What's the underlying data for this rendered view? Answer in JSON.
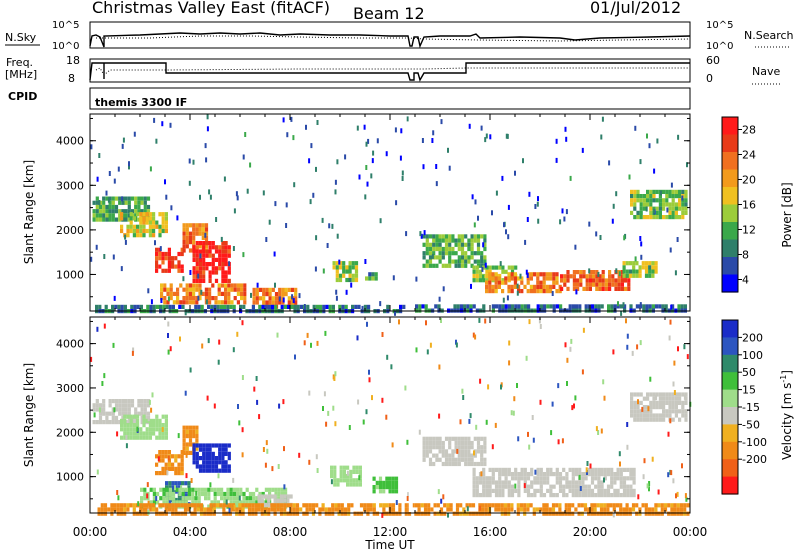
{
  "header": {
    "title": "Christmas Valley East (fitACF)",
    "beam": "Beam 12",
    "date": "01/Jul/2012"
  },
  "top_panels": {
    "nsky_label": "N.Sky",
    "nsky_left_ticks": [
      "10^5",
      "10^0"
    ],
    "nsky_right_ticks": [
      "10^5",
      "10^0"
    ],
    "nsearch_label": "N.Search",
    "freq_label": "Freq.",
    "freq_unit": "[MHz]",
    "freq_ticks": [
      "18",
      "8"
    ],
    "nave_label": "Nave",
    "nave_ticks": [
      "60",
      "0"
    ],
    "cpid_label": "CPID",
    "cpid_value": "themis 3300 IF"
  },
  "chart_data": [
    {
      "type": "heatmap",
      "panel": "power",
      "ylabel": "Slant Range [km]",
      "ylim": [
        180,
        4600
      ],
      "yticks": [
        "1000",
        "2000",
        "3000",
        "4000"
      ],
      "xlabel": "Time UT",
      "xlim_hours": [
        0,
        24
      ],
      "xticks": [
        "00:00",
        "04:00",
        "08:00",
        "12:00",
        "16:00",
        "20:00",
        "00:00"
      ],
      "colorbar": {
        "label": "Power [dB]",
        "ticks": [
          "4",
          "8",
          "12",
          "16",
          "20",
          "24",
          "28"
        ],
        "colors": [
          "#0000ff",
          "#2a4aa8",
          "#2f7f6a",
          "#3aa84a",
          "#9ccc3a",
          "#f0c020",
          "#f29a1c",
          "#f07020",
          "#e83a18",
          "#ff1a1a"
        ]
      },
      "regions": [
        {
          "t": [
            0.1,
            2.4
          ],
          "r": [
            2250,
            2750
          ],
          "v": 12
        },
        {
          "t": [
            1.2,
            3.0
          ],
          "r": [
            1900,
            2400
          ],
          "v": 16
        },
        {
          "t": [
            2.6,
            3.7
          ],
          "r": [
            1050,
            1600
          ],
          "v": 26
        },
        {
          "t": [
            3.7,
            4.6
          ],
          "r": [
            1500,
            2150
          ],
          "v": 22
        },
        {
          "t": [
            4.1,
            5.6
          ],
          "r": [
            850,
            1750
          ],
          "v": 28
        },
        {
          "t": [
            2.8,
            6.2
          ],
          "r": [
            350,
            800
          ],
          "v": 22
        },
        {
          "t": [
            6.5,
            8.2
          ],
          "r": [
            250,
            700
          ],
          "v": 22
        },
        {
          "t": [
            0.2,
            12.5
          ],
          "r": [
            190,
            320
          ],
          "v": 8
        },
        {
          "t": [
            9.7,
            10.7
          ],
          "r": [
            900,
            1300
          ],
          "v": 14
        },
        {
          "t": [
            11.0,
            11.5
          ],
          "r": [
            900,
            1050
          ],
          "v": 10
        },
        {
          "t": [
            13.3,
            15.8
          ],
          "r": [
            1200,
            1900
          ],
          "v": 12
        },
        {
          "t": [
            15.3,
            17.0
          ],
          "r": [
            900,
            1200
          ],
          "v": 14
        },
        {
          "t": [
            15.8,
            18.8
          ],
          "r": [
            650,
            1050
          ],
          "v": 22
        },
        {
          "t": [
            18.8,
            21.5
          ],
          "r": [
            650,
            1100
          ],
          "v": 24
        },
        {
          "t": [
            21.3,
            22.6
          ],
          "r": [
            1000,
            1300
          ],
          "v": 14
        },
        {
          "t": [
            21.6,
            23.9
          ],
          "r": [
            2300,
            2900
          ],
          "v": 14
        },
        {
          "t": [
            13.0,
            23.9
          ],
          "r": [
            190,
            330
          ],
          "v": 8
        }
      ]
    },
    {
      "type": "heatmap",
      "panel": "velocity",
      "ylabel": "Slant Range [km]",
      "ylim": [
        180,
        4600
      ],
      "yticks": [
        "1000",
        "2000",
        "3000",
        "4000"
      ],
      "xlabel": "Time UT",
      "xlim_hours": [
        0,
        24
      ],
      "xticks": [
        "00:00",
        "04:00",
        "08:00",
        "12:00",
        "16:00",
        "20:00",
        "00:00"
      ],
      "colorbar": {
        "label": "Velocity [m s^-1]",
        "ticks": [
          "200",
          "100",
          "50",
          "15",
          "-15",
          "-50",
          "-100",
          "-200"
        ],
        "colors": [
          "#1a2cc8",
          "#2c55c0",
          "#2f8a6a",
          "#3fbf3a",
          "#9fdd8a",
          "#c8c8c0",
          "#f0b020",
          "#f08a18",
          "#f06018",
          "#ff1a1a"
        ]
      },
      "regions": [
        {
          "t": [
            0.1,
            2.4
          ],
          "r": [
            2250,
            2750
          ],
          "v": 0
        },
        {
          "t": [
            1.2,
            3.0
          ],
          "r": [
            1900,
            2400
          ],
          "v": 30
        },
        {
          "t": [
            2.6,
            3.7
          ],
          "r": [
            1050,
            1600
          ],
          "v": -60
        },
        {
          "t": [
            3.7,
            4.3
          ],
          "r": [
            1500,
            2150
          ],
          "v": -60
        },
        {
          "t": [
            4.1,
            5.6
          ],
          "r": [
            1150,
            1750
          ],
          "v": 220
        },
        {
          "t": [
            3.0,
            4.0
          ],
          "r": [
            400,
            900
          ],
          "v": 150
        },
        {
          "t": [
            2.0,
            7.8
          ],
          "r": [
            300,
            750
          ],
          "v": 40
        },
        {
          "t": [
            6.7,
            8.2
          ],
          "r": [
            350,
            600
          ],
          "v": 0
        },
        {
          "t": [
            9.6,
            10.8
          ],
          "r": [
            850,
            1250
          ],
          "v": 30
        },
        {
          "t": [
            11.3,
            12.2
          ],
          "r": [
            700,
            1000
          ],
          "v": 60
        },
        {
          "t": [
            13.3,
            15.8
          ],
          "r": [
            1250,
            1900
          ],
          "v": 0
        },
        {
          "t": [
            15.3,
            21.8
          ],
          "r": [
            600,
            1200
          ],
          "v": 0
        },
        {
          "t": [
            21.6,
            23.9
          ],
          "r": [
            2300,
            2900
          ],
          "v": 0
        },
        {
          "t": [
            0.3,
            23.9
          ],
          "r": [
            190,
            400
          ],
          "v": -60
        }
      ]
    }
  ]
}
